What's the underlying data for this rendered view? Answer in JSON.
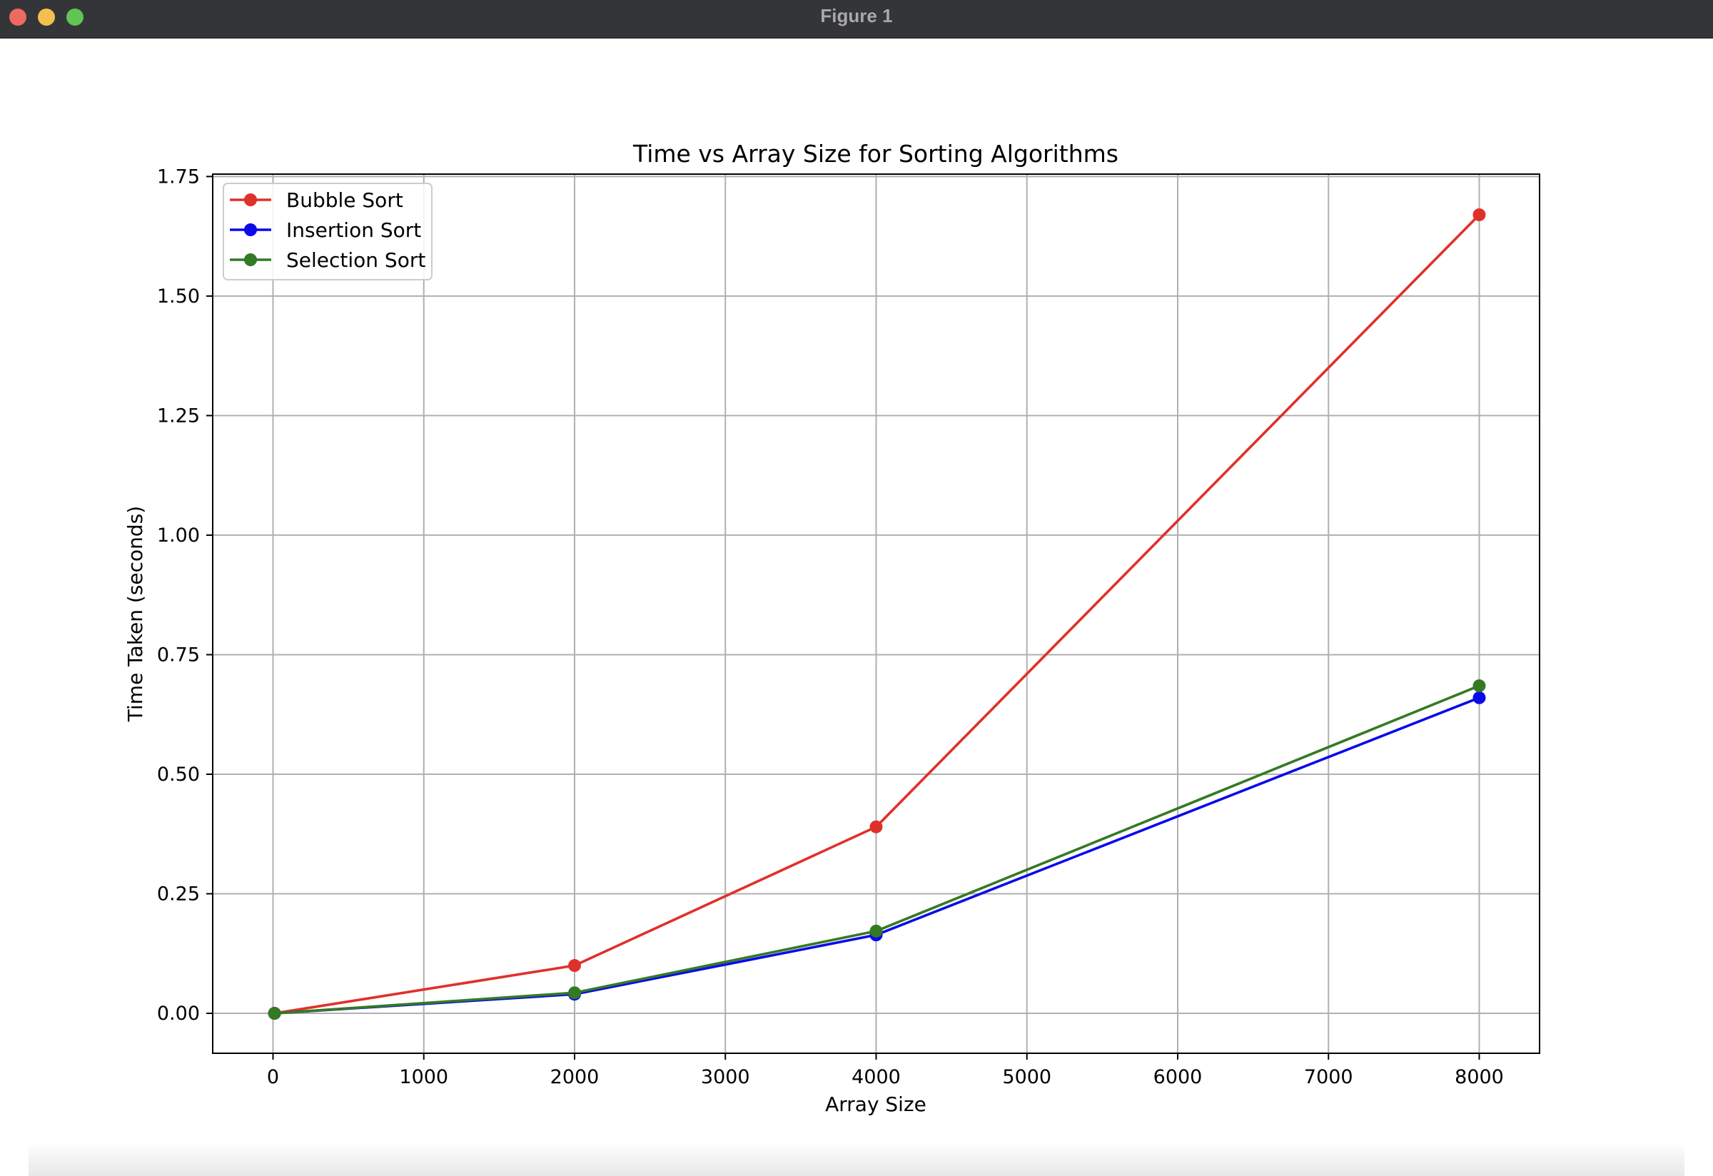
{
  "window": {
    "title": "Figure 1"
  },
  "chart_data": {
    "type": "line",
    "title": "Time vs Array Size for Sorting Algorithms",
    "xlabel": "Array Size",
    "ylabel": "Time Taken (seconds)",
    "xlim": [
      -400,
      8400
    ],
    "ylim": [
      -0.0835,
      1.755
    ],
    "xticks": [
      0,
      1000,
      2000,
      3000,
      4000,
      5000,
      6000,
      7000,
      8000
    ],
    "yticks": [
      0.0,
      0.25,
      0.5,
      0.75,
      1.0,
      1.25,
      1.5,
      1.75
    ],
    "xtick_labels": [
      "0",
      "1000",
      "2000",
      "3000",
      "4000",
      "5000",
      "6000",
      "7000",
      "8000"
    ],
    "ytick_labels": [
      "0.00",
      "0.25",
      "0.50",
      "0.75",
      "1.00",
      "1.25",
      "1.50",
      "1.75"
    ],
    "grid": true,
    "legend_position": "upper-left",
    "x": [
      10,
      2000,
      4000,
      8000
    ],
    "series": [
      {
        "name": "Bubble Sort",
        "color": "#e0302a",
        "values": [
          0.0,
          0.1,
          0.39,
          1.67
        ]
      },
      {
        "name": "Insertion Sort",
        "color": "#0a0aeb",
        "values": [
          0.0,
          0.04,
          0.164,
          0.66
        ]
      },
      {
        "name": "Selection Sort",
        "color": "#347a24",
        "values": [
          0.0,
          0.043,
          0.172,
          0.685
        ]
      }
    ]
  }
}
